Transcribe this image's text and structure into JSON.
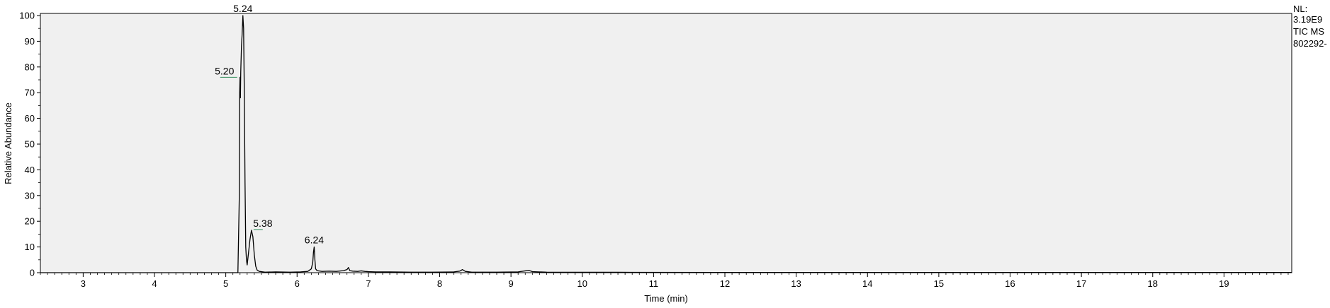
{
  "chart_data": {
    "type": "line",
    "title": "",
    "xlabel": "Time (min)",
    "ylabel": "Relative Abundance",
    "xlim": [
      2.4,
      19.95
    ],
    "ylim": [
      0,
      100
    ],
    "x_ticks": [
      3,
      4,
      5,
      6,
      7,
      8,
      9,
      10,
      11,
      12,
      13,
      14,
      15,
      16,
      17,
      18,
      19
    ],
    "y_ticks": [
      0,
      10,
      20,
      30,
      40,
      50,
      60,
      70,
      80,
      90,
      100
    ],
    "grid": false,
    "series": [
      {
        "x": [
          2.4,
          5.17,
          5.19,
          5.195,
          5.2,
          5.205,
          5.21,
          5.22,
          5.23,
          5.24,
          5.25,
          5.26,
          5.27,
          5.28,
          5.29,
          5.3,
          5.32,
          5.34,
          5.36,
          5.38,
          5.4,
          5.42,
          5.44,
          5.47,
          5.55,
          5.7,
          5.9,
          6.05,
          6.15,
          6.2,
          6.22,
          6.23,
          6.24,
          6.25,
          6.26,
          6.28,
          6.35,
          6.45,
          6.55,
          6.65,
          6.7,
          6.72,
          6.74,
          6.78,
          6.85,
          6.9,
          6.95,
          7.0,
          7.1,
          7.3,
          7.6,
          7.9,
          8.2,
          8.28,
          8.32,
          8.36,
          8.45,
          8.8,
          9.1,
          9.2,
          9.25,
          9.3,
          9.5,
          10.5,
          12.0,
          14.0,
          16.0,
          18.0,
          19.95
        ],
        "y": [
          0,
          0,
          30,
          70,
          76,
          68,
          78,
          88,
          93,
          100,
          95,
          70,
          35,
          10,
          5,
          3,
          8,
          13,
          16.5,
          14,
          7,
          2.5,
          1,
          0.5,
          0.2,
          0.3,
          0.2,
          0.3,
          0.5,
          1.5,
          4,
          8,
          10,
          5,
          1.5,
          0.8,
          0.5,
          0.6,
          0.5,
          0.8,
          1.2,
          2,
          0.8,
          0.6,
          0.5,
          0.7,
          0.5,
          0.4,
          0.3,
          0.3,
          0.2,
          0.2,
          0.3,
          0.6,
          1.2,
          0.5,
          0.2,
          0.2,
          0.3,
          0.7,
          0.9,
          0.4,
          0.2,
          0.15,
          0.1,
          0.1,
          0.1,
          0.1,
          0.1
        ]
      }
    ],
    "peak_labels": [
      {
        "text": "5.24",
        "x": 5.24,
        "y": 100
      },
      {
        "text": "5.20",
        "x": 5.2,
        "y": 76
      },
      {
        "text": "5.38",
        "x": 5.38,
        "y": 16.5
      },
      {
        "text": "6.24",
        "x": 6.24,
        "y": 10
      }
    ],
    "info": {
      "line1": "NL:",
      "line2": "3.19E9",
      "line3": "TIC  MS",
      "line4": "802292-"
    },
    "colors": {
      "plot_bg": "#f0f0f0",
      "trace": "#000000",
      "label_line": "#2e8b57"
    }
  }
}
